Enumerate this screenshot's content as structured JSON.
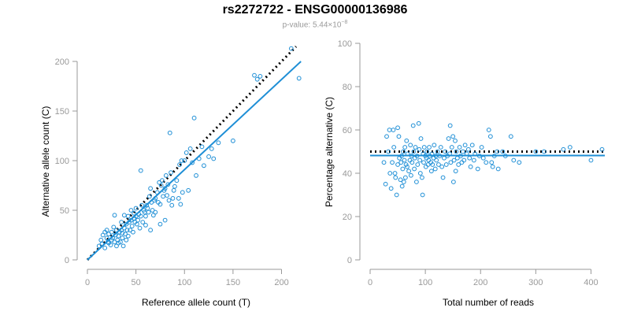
{
  "header": {
    "title": "rs2272722 - ENSG00000136986",
    "subtitle_prefix": "p-value: 5.44×10",
    "subtitle_exp": "−8"
  },
  "colors": {
    "point": "#1f8fd6",
    "fit": "#1f8fd6",
    "reference": "#000000",
    "axis": "#999999"
  },
  "chart_data": [
    {
      "type": "scatter",
      "name": "allele-count",
      "title": "",
      "xlabel": "Reference allele count (T)",
      "ylabel": "Alternative allele count (C)",
      "xlim": [
        0,
        215
      ],
      "ylim": [
        0,
        200
      ],
      "xticks": [
        0,
        50,
        100,
        150,
        200
      ],
      "yticks": [
        0,
        50,
        100,
        150,
        200
      ],
      "fit_line": {
        "style": "solid",
        "points": [
          [
            0,
            0
          ],
          [
            220,
            200
          ]
        ]
      },
      "reference_line": {
        "style": "dotted",
        "points": [
          [
            0,
            0
          ],
          [
            215,
            215
          ]
        ]
      },
      "points": [
        [
          12,
          14
        ],
        [
          14,
          20
        ],
        [
          15,
          16
        ],
        [
          16,
          25
        ],
        [
          18,
          28
        ],
        [
          18,
          12
        ],
        [
          20,
          22
        ],
        [
          20,
          30
        ],
        [
          21,
          18
        ],
        [
          22,
          17
        ],
        [
          22,
          26
        ],
        [
          24,
          15
        ],
        [
          25,
          20
        ],
        [
          25,
          28
        ],
        [
          26,
          22
        ],
        [
          27,
          33
        ],
        [
          28,
          45
        ],
        [
          28,
          18
        ],
        [
          29,
          25
        ],
        [
          30,
          30
        ],
        [
          30,
          14
        ],
        [
          31,
          20
        ],
        [
          32,
          24
        ],
        [
          32,
          17
        ],
        [
          33,
          28
        ],
        [
          34,
          18
        ],
        [
          35,
          30
        ],
        [
          35,
          38
        ],
        [
          36,
          22
        ],
        [
          36,
          27
        ],
        [
          37,
          14
        ],
        [
          38,
          32
        ],
        [
          38,
          45
        ],
        [
          39,
          26
        ],
        [
          40,
          20
        ],
        [
          40,
          36
        ],
        [
          41,
          30
        ],
        [
          42,
          44
        ],
        [
          42,
          24
        ],
        [
          43,
          38
        ],
        [
          44,
          30
        ],
        [
          45,
          50
        ],
        [
          45,
          40
        ],
        [
          46,
          34
        ],
        [
          47,
          28
        ],
        [
          48,
          42
        ],
        [
          48,
          47
        ],
        [
          49,
          38
        ],
        [
          50,
          44
        ],
        [
          50,
          52
        ],
        [
          51,
          36
        ],
        [
          52,
          40
        ],
        [
          53,
          46
        ],
        [
          54,
          32
        ],
        [
          55,
          44
        ],
        [
          55,
          90
        ],
        [
          56,
          55
        ],
        [
          57,
          38
        ],
        [
          58,
          50
        ],
        [
          59,
          48
        ],
        [
          60,
          44
        ],
        [
          60,
          35
        ],
        [
          61,
          55
        ],
        [
          62,
          52
        ],
        [
          63,
          48
        ],
        [
          64,
          64
        ],
        [
          65,
          72
        ],
        [
          65,
          30
        ],
        [
          66,
          58
        ],
        [
          67,
          50
        ],
        [
          68,
          45
        ],
        [
          69,
          60
        ],
        [
          70,
          62
        ],
        [
          70,
          48
        ],
        [
          72,
          68
        ],
        [
          73,
          58
        ],
        [
          74,
          78
        ],
        [
          75,
          56
        ],
        [
          75,
          36
        ],
        [
          76,
          75
        ],
        [
          77,
          80
        ],
        [
          78,
          64
        ],
        [
          79,
          70
        ],
        [
          80,
          72
        ],
        [
          80,
          40
        ],
        [
          81,
          85
        ],
        [
          82,
          65
        ],
        [
          83,
          76
        ],
        [
          84,
          60
        ],
        [
          85,
          128
        ],
        [
          86,
          88
        ],
        [
          87,
          55
        ],
        [
          88,
          62
        ],
        [
          89,
          70
        ],
        [
          90,
          74
        ],
        [
          92,
          80
        ],
        [
          94,
          62
        ],
        [
          95,
          96
        ],
        [
          96,
          56
        ],
        [
          97,
          100
        ],
        [
          98,
          68
        ],
        [
          100,
          100
        ],
        [
          102,
          108
        ],
        [
          104,
          70
        ],
        [
          106,
          112
        ],
        [
          108,
          98
        ],
        [
          110,
          143
        ],
        [
          112,
          85
        ],
        [
          115,
          102
        ],
        [
          118,
          114
        ],
        [
          120,
          95
        ],
        [
          125,
          104
        ],
        [
          128,
          112
        ],
        [
          130,
          102
        ],
        [
          135,
          118
        ],
        [
          150,
          120
        ],
        [
          172,
          186
        ],
        [
          175,
          182
        ],
        [
          178,
          185
        ],
        [
          210,
          213
        ],
        [
          218,
          183
        ]
      ]
    },
    {
      "type": "scatter",
      "name": "percentage",
      "title": "",
      "xlabel": "Total number of reads",
      "ylabel": "Percentage alternative (C)",
      "xlim": [
        0,
        425
      ],
      "ylim": [
        0,
        100
      ],
      "xticks": [
        0,
        100,
        200,
        300,
        400
      ],
      "yticks": [
        0,
        20,
        40,
        60,
        80,
        100
      ],
      "fit_line": {
        "style": "solid",
        "y": 48.2
      },
      "reference_line": {
        "style": "dotted",
        "y": 50
      },
      "points": [
        [
          25,
          45
        ],
        [
          28,
          35
        ],
        [
          30,
          57
        ],
        [
          33,
          50
        ],
        [
          35,
          60
        ],
        [
          36,
          40
        ],
        [
          38,
          33
        ],
        [
          40,
          45
        ],
        [
          42,
          60
        ],
        [
          43,
          52
        ],
        [
          45,
          40
        ],
        [
          46,
          38
        ],
        [
          48,
          30
        ],
        [
          50,
          44
        ],
        [
          50,
          61
        ],
        [
          52,
          57
        ],
        [
          53,
          47
        ],
        [
          55,
          37
        ],
        [
          56,
          45
        ],
        [
          57,
          48
        ],
        [
          58,
          34
        ],
        [
          59,
          42
        ],
        [
          60,
          50
        ],
        [
          61,
          36
        ],
        [
          62,
          46
        ],
        [
          63,
          52
        ],
        [
          64,
          38
        ],
        [
          65,
          44
        ],
        [
          66,
          55
        ],
        [
          67,
          43
        ],
        [
          68,
          49
        ],
        [
          70,
          41
        ],
        [
          72,
          46
        ],
        [
          73,
          53
        ],
        [
          74,
          39
        ],
        [
          75,
          48
        ],
        [
          76,
          45
        ],
        [
          78,
          62
        ],
        [
          79,
          50
        ],
        [
          80,
          42
        ],
        [
          81,
          47
        ],
        [
          82,
          52
        ],
        [
          84,
          36
        ],
        [
          85,
          48
        ],
        [
          86,
          44
        ],
        [
          88,
          63
        ],
        [
          89,
          51
        ],
        [
          90,
          46
        ],
        [
          91,
          40
        ],
        [
          92,
          56
        ],
        [
          94,
          38
        ],
        [
          95,
          30
        ],
        [
          96,
          49
        ],
        [
          97,
          45
        ],
        [
          98,
          52
        ],
        [
          100,
          48
        ],
        [
          101,
          43
        ],
        [
          102,
          47
        ],
        [
          103,
          50
        ],
        [
          105,
          44
        ],
        [
          106,
          46
        ],
        [
          107,
          52
        ],
        [
          108,
          48
        ],
        [
          110,
          45
        ],
        [
          111,
          41
        ],
        [
          112,
          49
        ],
        [
          113,
          44
        ],
        [
          115,
          47
        ],
        [
          116,
          53
        ],
        [
          118,
          42
        ],
        [
          119,
          48
        ],
        [
          120,
          46
        ],
        [
          122,
          50
        ],
        [
          124,
          44
        ],
        [
          126,
          48
        ],
        [
          128,
          52
        ],
        [
          130,
          43
        ],
        [
          132,
          38
        ],
        [
          134,
          47
        ],
        [
          136,
          50
        ],
        [
          138,
          44
        ],
        [
          140,
          48
        ],
        [
          142,
          56
        ],
        [
          144,
          49
        ],
        [
          145,
          62
        ],
        [
          146,
          45
        ],
        [
          148,
          52
        ],
        [
          150,
          57
        ],
        [
          151,
          36
        ],
        [
          152,
          46
        ],
        [
          154,
          55
        ],
        [
          155,
          41
        ],
        [
          156,
          50
        ],
        [
          158,
          47
        ],
        [
          160,
          44
        ],
        [
          162,
          52
        ],
        [
          164,
          48
        ],
        [
          166,
          45
        ],
        [
          168,
          50
        ],
        [
          170,
          46
        ],
        [
          172,
          53
        ],
        [
          175,
          49
        ],
        [
          178,
          51
        ],
        [
          180,
          47
        ],
        [
          182,
          43
        ],
        [
          185,
          53
        ],
        [
          188,
          46
        ],
        [
          190,
          49
        ],
        [
          195,
          42
        ],
        [
          198,
          48
        ],
        [
          202,
          52
        ],
        [
          205,
          47
        ],
        [
          210,
          45
        ],
        [
          215,
          60
        ],
        [
          218,
          57
        ],
        [
          220,
          45
        ],
        [
          222,
          43
        ],
        [
          225,
          48
        ],
        [
          230,
          50
        ],
        [
          232,
          42
        ],
        [
          240,
          50
        ],
        [
          245,
          48
        ],
        [
          255,
          57
        ],
        [
          260,
          46
        ],
        [
          270,
          45
        ],
        [
          300,
          50
        ],
        [
          315,
          50
        ],
        [
          350,
          51
        ],
        [
          362,
          52
        ],
        [
          400,
          46
        ],
        [
          420,
          51
        ]
      ]
    }
  ]
}
